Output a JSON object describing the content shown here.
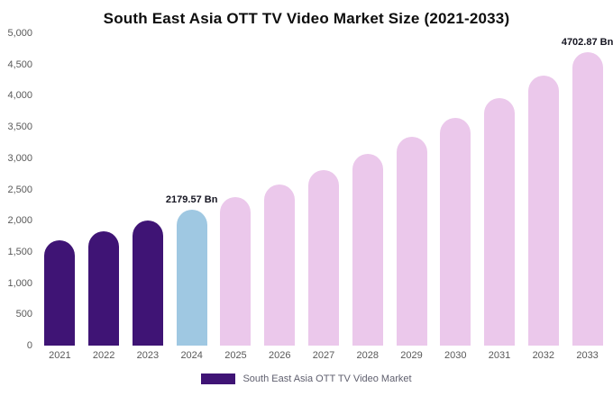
{
  "title": "South East Asia OTT TV Video Market Size (2021-2033)",
  "legend": {
    "label": "South East Asia OTT TV Video Market",
    "swatch_color": "#3F1475"
  },
  "chart_data": {
    "type": "bar",
    "title": "South East Asia OTT TV Video Market Size (2021-2033)",
    "categories": [
      "2021",
      "2022",
      "2023",
      "2024",
      "2025",
      "2026",
      "2027",
      "2028",
      "2029",
      "2030",
      "2031",
      "2032",
      "2033"
    ],
    "values": [
      1687,
      1837,
      2001,
      2179.57,
      2374,
      2586,
      2817,
      3069,
      3343,
      3641,
      3966,
      4320,
      4702.87
    ],
    "unit": "Bn",
    "bar_colors": [
      "#3F1475",
      "#3F1475",
      "#3F1475",
      "#9FC8E2",
      "#EBC8EB",
      "#EBC8EB",
      "#EBC8EB",
      "#EBC8EB",
      "#EBC8EB",
      "#EBC8EB",
      "#EBC8EB",
      "#EBC8EB",
      "#EBC8EB"
    ],
    "annotations": [
      {
        "category": "2024",
        "text": "2179.57 Bn"
      },
      {
        "category": "2033",
        "text": "4702.87 Bn"
      }
    ],
    "ylim": [
      0,
      5000
    ],
    "ytick_step": 500,
    "yticks": [
      "0",
      "500",
      "1,000",
      "1,500",
      "2,000",
      "2,500",
      "3,000",
      "3,500",
      "4,000",
      "4,500",
      "5,000"
    ],
    "xlabel": "",
    "ylabel": "",
    "grid": false,
    "legend_position": "bottom",
    "colors": {
      "historical": "#3F1475",
      "current_year_highlight": "#9FC8E2",
      "forecast": "#EBC8EB"
    }
  }
}
